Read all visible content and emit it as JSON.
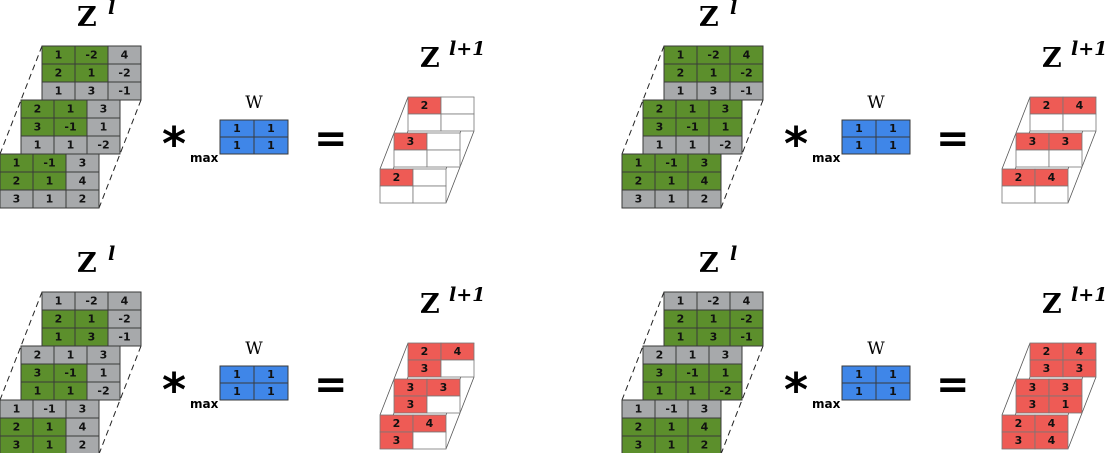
{
  "symbols": {
    "input_base": "Z",
    "input_sup": "l",
    "output_base": "Z",
    "output_sup": "l+1",
    "kernel_label": "W",
    "operator": "*",
    "operator_sub": "max",
    "equals": "="
  },
  "colors": {
    "green": "#5c8f2c",
    "gray": "#a7a9ab",
    "blue": "#3f86e8",
    "red": "#ee5b55",
    "white": "#ffffff"
  },
  "kernel": [
    [
      "1",
      "1"
    ],
    [
      "1",
      "1"
    ]
  ],
  "input_layers": [
    [
      [
        "1",
        "-2",
        "4"
      ],
      [
        "2",
        "1",
        "-2"
      ],
      [
        "1",
        "3",
        "-1"
      ]
    ],
    [
      [
        "2",
        "1",
        "3"
      ],
      [
        "3",
        "-1",
        "1"
      ],
      [
        "1",
        "1",
        "-2"
      ]
    ],
    [
      [
        "1",
        "-1",
        "3"
      ],
      [
        "2",
        "1",
        "4"
      ],
      [
        "3",
        "1",
        "2"
      ]
    ]
  ],
  "panels": [
    {
      "id": "step-1",
      "input_highlight": [
        [
          [
            1,
            1,
            0
          ],
          [
            1,
            1,
            0
          ],
          [
            0,
            0,
            0
          ]
        ],
        [
          [
            1,
            1,
            0
          ],
          [
            1,
            1,
            0
          ],
          [
            0,
            0,
            0
          ]
        ],
        [
          [
            1,
            1,
            0
          ],
          [
            1,
            1,
            0
          ],
          [
            0,
            0,
            0
          ]
        ]
      ],
      "output_layers": [
        [
          [
            "2",
            ""
          ],
          [
            "",
            ""
          ]
        ],
        [
          [
            "3",
            ""
          ],
          [
            "",
            ""
          ]
        ],
        [
          [
            "2",
            ""
          ],
          [
            "",
            ""
          ]
        ]
      ]
    },
    {
      "id": "step-2",
      "input_highlight": [
        [
          [
            1,
            1,
            1
          ],
          [
            1,
            1,
            1
          ],
          [
            0,
            0,
            0
          ]
        ],
        [
          [
            1,
            1,
            1
          ],
          [
            1,
            1,
            1
          ],
          [
            0,
            0,
            0
          ]
        ],
        [
          [
            1,
            1,
            1
          ],
          [
            1,
            1,
            1
          ],
          [
            0,
            0,
            0
          ]
        ]
      ],
      "output_layers": [
        [
          [
            "2",
            "4"
          ],
          [
            "",
            ""
          ]
        ],
        [
          [
            "3",
            "3"
          ],
          [
            "",
            ""
          ]
        ],
        [
          [
            "2",
            "4"
          ],
          [
            "",
            ""
          ]
        ]
      ]
    },
    {
      "id": "step-3",
      "input_highlight": [
        [
          [
            0,
            0,
            0
          ],
          [
            1,
            1,
            0
          ],
          [
            1,
            1,
            0
          ]
        ],
        [
          [
            0,
            0,
            0
          ],
          [
            1,
            1,
            0
          ],
          [
            1,
            1,
            0
          ]
        ],
        [
          [
            0,
            0,
            0
          ],
          [
            1,
            1,
            0
          ],
          [
            1,
            1,
            0
          ]
        ]
      ],
      "output_layers": [
        [
          [
            "2",
            "4"
          ],
          [
            "3",
            ""
          ]
        ],
        [
          [
            "3",
            "3"
          ],
          [
            "3",
            ""
          ]
        ],
        [
          [
            "2",
            "4"
          ],
          [
            "3",
            ""
          ]
        ]
      ]
    },
    {
      "id": "step-4",
      "input_highlight": [
        [
          [
            0,
            0,
            0
          ],
          [
            1,
            1,
            1
          ],
          [
            1,
            1,
            1
          ]
        ],
        [
          [
            0,
            0,
            0
          ],
          [
            1,
            1,
            1
          ],
          [
            1,
            1,
            1
          ]
        ],
        [
          [
            0,
            0,
            0
          ],
          [
            1,
            1,
            1
          ],
          [
            1,
            1,
            1
          ]
        ]
      ],
      "output_layers": [
        [
          [
            "2",
            "4"
          ],
          [
            "3",
            "3"
          ]
        ],
        [
          [
            "3",
            "3"
          ],
          [
            "3",
            "1"
          ]
        ],
        [
          [
            "2",
            "4"
          ],
          [
            "3",
            "4"
          ]
        ]
      ]
    }
  ]
}
